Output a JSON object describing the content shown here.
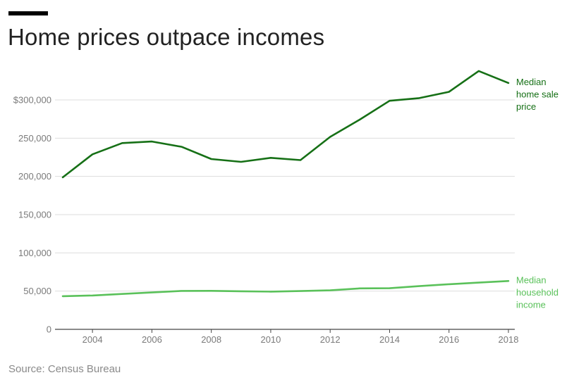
{
  "header": {
    "title": "Home prices outpace incomes"
  },
  "footer": {
    "source": "Source: Census Bureau"
  },
  "colors": {
    "home_price": "#167016",
    "income": "#5ac15a",
    "grid": "#dddddd",
    "axis": "#444444",
    "title_bar": "#000000"
  },
  "chart_data": {
    "type": "line",
    "title": "Home prices outpace incomes",
    "xlabel": "",
    "ylabel": "",
    "x": [
      2003,
      2004,
      2005,
      2006,
      2007,
      2008,
      2009,
      2010,
      2011,
      2012,
      2013,
      2014,
      2015,
      2016,
      2017,
      2018
    ],
    "xlim": [
      2003,
      2018
    ],
    "ylim": [
      0,
      300000
    ],
    "x_ticks": [
      2004,
      2006,
      2008,
      2010,
      2012,
      2014,
      2016,
      2018
    ],
    "y_ticks": [
      0,
      50000,
      100000,
      150000,
      200000,
      250000,
      300000
    ],
    "y_tick_labels": [
      "0",
      "50,000",
      "100,000",
      "150,000",
      "200,000",
      "250,000",
      "$300,000"
    ],
    "grid": true,
    "legend": "labels at right end of lines",
    "series": [
      {
        "name": "Median home sale price",
        "label_lines": [
          "Median",
          "home sale",
          "price"
        ],
        "color": "#167016",
        "values": [
          198800,
          228900,
          243600,
          245600,
          238700,
          222700,
          219000,
          224300,
          221300,
          251700,
          274300,
          298900,
          302400,
          310600,
          337800,
          322200
        ]
      },
      {
        "name": "Median household income",
        "label_lines": [
          "Median",
          "household",
          "income"
        ],
        "color": "#5ac15a",
        "values": [
          43300,
          44300,
          46300,
          48200,
          50200,
          50300,
          49800,
          49300,
          50100,
          51000,
          53600,
          53700,
          56500,
          59000,
          61100,
          63200
        ]
      }
    ]
  }
}
